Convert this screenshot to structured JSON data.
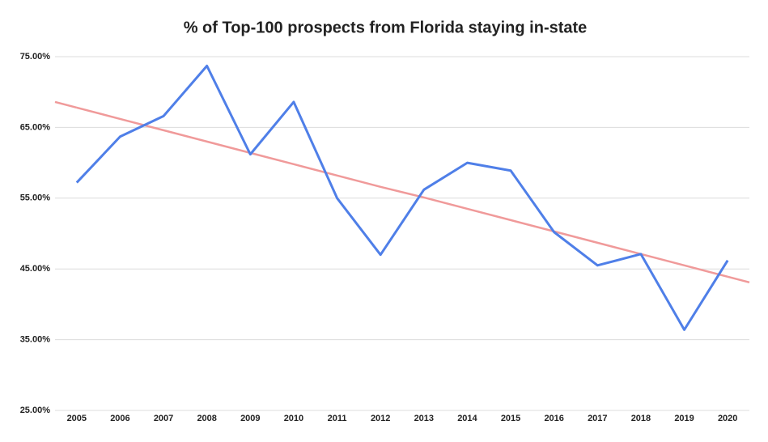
{
  "chart_data": {
    "type": "line",
    "title": "% of Top-100 prospects from Florida staying in-state",
    "categories": [
      "2005",
      "2006",
      "2007",
      "2008",
      "2009",
      "2010",
      "2011",
      "2012",
      "2013",
      "2014",
      "2015",
      "2016",
      "2017",
      "2018",
      "2019",
      "2020"
    ],
    "series": [
      {
        "color": "#4f7fe8",
        "values": [
          57.2,
          63.7,
          66.6,
          73.7,
          61.2,
          68.6,
          55.0,
          47.0,
          56.2,
          60.0,
          58.9,
          50.2,
          45.5,
          47.1,
          36.4,
          46.2
        ]
      }
    ],
    "trendline": {
      "color": "#f09a9a",
      "values": [
        67.8,
        66.2,
        64.6,
        63.0,
        61.4,
        59.8,
        58.2,
        56.6,
        55.1,
        53.5,
        51.9,
        50.3,
        48.7,
        47.1,
        45.5,
        43.9
      ]
    },
    "ylim": [
      25,
      75
    ],
    "yticks": [
      {
        "value": 25,
        "label": "25.00%"
      },
      {
        "value": 35,
        "label": "35.00%"
      },
      {
        "value": 45,
        "label": "45.00%"
      },
      {
        "value": 55,
        "label": "55.00%"
      },
      {
        "value": 65,
        "label": "65.00%"
      },
      {
        "value": 75,
        "label": "75.00%"
      }
    ],
    "grid": true
  }
}
